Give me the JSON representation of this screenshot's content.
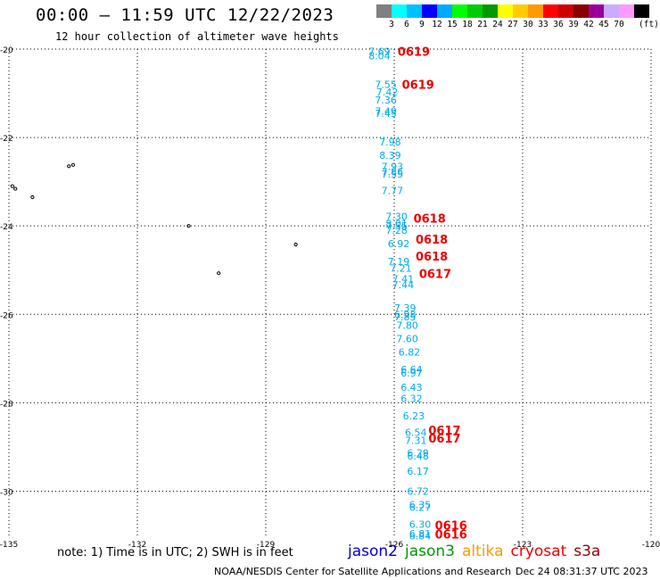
{
  "header": {
    "title": "00:00 – 11:59 UTC 12/22/2023",
    "subtitle": "12 hour collection of altimeter wave heights"
  },
  "colorbar": {
    "colors": [
      "#808080",
      "#00ffff",
      "#00bfff",
      "#0000ff",
      "#00aaff",
      "#00ff00",
      "#00cc00",
      "#009900",
      "#ffff00",
      "#ffcc00",
      "#ff9900",
      "#ff0000",
      "#cc0000",
      "#880000",
      "#990099",
      "#ccaaff",
      "#ff99ff",
      "#000000"
    ],
    "labels": [
      "3",
      "6",
      "9",
      "12",
      "15",
      "18",
      "21",
      "24",
      "27",
      "30",
      "33",
      "36",
      "39",
      "42",
      "45",
      "70"
    ],
    "unit": "(ft)"
  },
  "map": {
    "lat_labels": [
      "-20",
      "-22",
      "-24",
      "-26",
      "-28",
      "-30"
    ],
    "lon_labels": [
      "-135",
      "-132",
      "-129",
      "-126",
      "-123",
      "-120"
    ],
    "grid_lines": true,
    "island_color": "#000000",
    "swh_color": "#00aaee",
    "time_color": "#ee0000",
    "swh_readings": [
      {
        "lat": -20.05,
        "lon": -126.6,
        "value": "7.69"
      },
      {
        "lat": -20.15,
        "lon": -126.6,
        "value": "8.04"
      },
      {
        "lat": -20.8,
        "lon": -126.45,
        "value": "7.55"
      },
      {
        "lat": -20.97,
        "lon": -126.42,
        "value": "7.42"
      },
      {
        "lat": -21.15,
        "lon": -126.45,
        "value": "7.36"
      },
      {
        "lat": -21.4,
        "lon": -126.45,
        "value": "7.49"
      },
      {
        "lat": -21.45,
        "lon": -126.45,
        "value": "7.45"
      },
      {
        "lat": -22.1,
        "lon": -126.35,
        "value": "7.98"
      },
      {
        "lat": -22.4,
        "lon": -126.35,
        "value": "8.39"
      },
      {
        "lat": -22.65,
        "lon": -126.3,
        "value": "7.93"
      },
      {
        "lat": -22.78,
        "lon": -126.3,
        "value": "7.86"
      },
      {
        "lat": -22.83,
        "lon": -126.3,
        "value": "7.55"
      },
      {
        "lat": -23.2,
        "lon": -126.3,
        "value": "7.77"
      },
      {
        "lat": -23.78,
        "lon": -126.2,
        "value": "7.30"
      },
      {
        "lat": -23.95,
        "lon": -126.2,
        "value": "8.01"
      },
      {
        "lat": -24.0,
        "lon": -126.2,
        "value": "7.55"
      },
      {
        "lat": -24.1,
        "lon": -126.2,
        "value": "7.28"
      },
      {
        "lat": -24.4,
        "lon": -126.15,
        "value": "6.92"
      },
      {
        "lat": -24.8,
        "lon": -126.15,
        "value": "7.19"
      },
      {
        "lat": -24.96,
        "lon": -126.1,
        "value": "7.21"
      },
      {
        "lat": -25.2,
        "lon": -126.05,
        "value": "7.41"
      },
      {
        "lat": -25.33,
        "lon": -126.05,
        "value": "7.44"
      },
      {
        "lat": -25.85,
        "lon": -126.0,
        "value": "7.39"
      },
      {
        "lat": -26.0,
        "lon": -126.0,
        "value": "6.98"
      },
      {
        "lat": -26.05,
        "lon": -126.0,
        "value": "7.85"
      },
      {
        "lat": -26.25,
        "lon": -125.95,
        "value": "7.80"
      },
      {
        "lat": -26.55,
        "lon": -125.95,
        "value": "7.60"
      },
      {
        "lat": -26.85,
        "lon": -125.9,
        "value": "6.82"
      },
      {
        "lat": -27.25,
        "lon": -125.85,
        "value": "6.64"
      },
      {
        "lat": -27.33,
        "lon": -125.85,
        "value": "6.97"
      },
      {
        "lat": -27.65,
        "lon": -125.85,
        "value": "6.43"
      },
      {
        "lat": -27.9,
        "lon": -125.85,
        "value": "6.32"
      },
      {
        "lat": -28.3,
        "lon": -125.8,
        "value": "6.23"
      },
      {
        "lat": -28.67,
        "lon": -125.75,
        "value": "6.54"
      },
      {
        "lat": -28.85,
        "lon": -125.75,
        "value": "7.31"
      },
      {
        "lat": -29.13,
        "lon": -125.7,
        "value": "6.29"
      },
      {
        "lat": -29.2,
        "lon": -125.7,
        "value": "6.48"
      },
      {
        "lat": -29.55,
        "lon": -125.7,
        "value": "6.17"
      },
      {
        "lat": -30.0,
        "lon": -125.7,
        "value": "6.72"
      },
      {
        "lat": -30.3,
        "lon": -125.65,
        "value": "6.35"
      },
      {
        "lat": -30.36,
        "lon": -125.65,
        "value": "6.27"
      },
      {
        "lat": -30.75,
        "lon": -125.65,
        "value": "6.30"
      },
      {
        "lat": -30.96,
        "lon": -125.65,
        "value": "6.81"
      },
      {
        "lat": -31.01,
        "lon": -125.65,
        "value": "6.84"
      }
    ],
    "time_labels": [
      {
        "lat": -20.05,
        "lon": -125.92,
        "value": "0619"
      },
      {
        "lat": -20.8,
        "lon": -125.82,
        "value": "0619"
      },
      {
        "lat": -23.82,
        "lon": -125.55,
        "value": "0618"
      },
      {
        "lat": -24.3,
        "lon": -125.5,
        "value": "0618"
      },
      {
        "lat": -24.68,
        "lon": -125.5,
        "value": "0618"
      },
      {
        "lat": -25.08,
        "lon": -125.42,
        "value": "0617"
      },
      {
        "lat": -28.62,
        "lon": -125.2,
        "value": "0617"
      },
      {
        "lat": -28.8,
        "lon": -125.2,
        "value": "0617"
      },
      {
        "lat": -30.77,
        "lon": -125.05,
        "value": "0616"
      },
      {
        "lat": -30.97,
        "lon": -125.05,
        "value": "0616"
      }
    ],
    "islands": [
      {
        "lat": -22.65,
        "lon": -133.6
      },
      {
        "lat": -22.62,
        "lon": -133.5
      },
      {
        "lat": -23.1,
        "lon": -134.92
      },
      {
        "lat": -23.16,
        "lon": -134.85
      },
      {
        "lat": -23.35,
        "lon": -134.45
      },
      {
        "lat": -24.0,
        "lon": -130.8
      },
      {
        "lat": -24.42,
        "lon": -128.3
      },
      {
        "lat": -25.07,
        "lon": -130.1
      }
    ]
  },
  "footer": {
    "note": "note: 1) Time is in UTC; 2) SWH is in feet",
    "satellites": [
      {
        "name": "jason2",
        "color": "#0000dd"
      },
      {
        "name": "jason3",
        "color": "#009900"
      },
      {
        "name": "altika",
        "color": "#ff9900"
      },
      {
        "name": "cryosat",
        "color": "#ee0000"
      },
      {
        "name": "s3a",
        "color": "#990000"
      }
    ],
    "credit": "NOAA/NESDIS Center for Satellite Applications and Research",
    "timestamp": "Dec 24 08:31:37 UTC 2023"
  }
}
